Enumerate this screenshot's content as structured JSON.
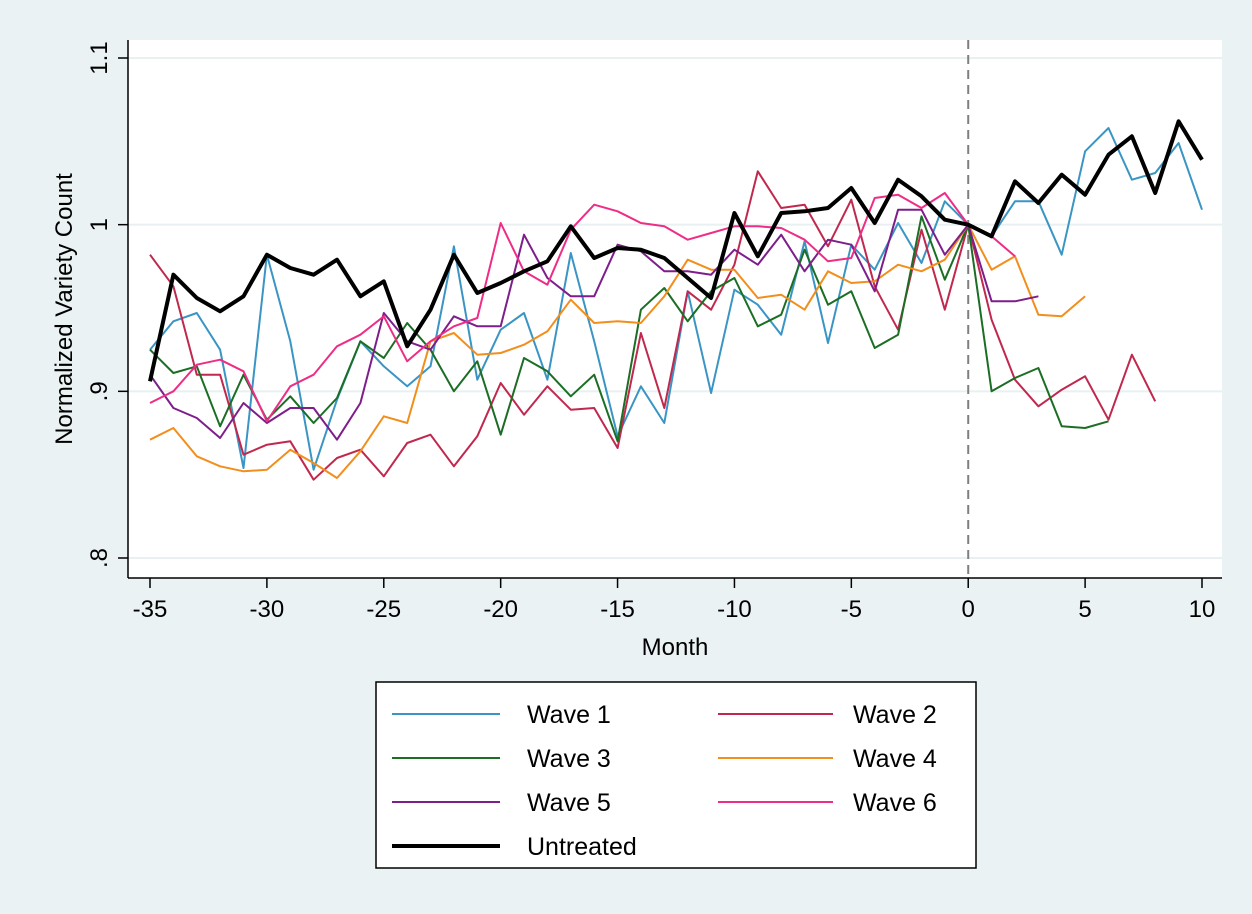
{
  "chart_data": {
    "type": "line",
    "xlabel": "Month",
    "ylabel": "Normalized Variety Count",
    "xlim": [
      -35,
      10
    ],
    "ylim": [
      0.8,
      1.1
    ],
    "xticks": [
      -35,
      -30,
      -25,
      -20,
      -15,
      -10,
      -5,
      0,
      5,
      10
    ],
    "xtick_labels": [
      "-35",
      "-30",
      "-25",
      "-20",
      "-15",
      "-10",
      "-5",
      "0",
      "5",
      "10"
    ],
    "yticks": [
      0.8,
      0.9,
      1.0,
      1.1
    ],
    "ytick_labels": [
      ".8",
      ".9",
      "1",
      "1.1"
    ],
    "grid": true,
    "vline_x": 0,
    "legend_position": "bottom",
    "colors": {
      "background": "#eaf2f3",
      "plot_background": "#ffffff",
      "grid": "#e8f0f1",
      "vline": "#7f7f7f"
    },
    "series": [
      {
        "name": "Wave 1",
        "color": "#3a95c4",
        "width": 2,
        "x": [
          -35,
          -34,
          -33,
          -32,
          -31,
          -30,
          -29,
          -28,
          -27,
          -26,
          -25,
          -24,
          -23,
          -22,
          -21,
          -20,
          -19,
          -18,
          -17,
          -16,
          -15,
          -14,
          -13,
          -12,
          -11,
          -10,
          -9,
          -8,
          -7,
          -6,
          -5,
          -4,
          -3,
          -2,
          -1,
          0,
          1,
          2,
          3,
          4,
          5,
          6,
          7,
          8,
          9,
          10
        ],
        "y": [
          0.925,
          0.942,
          0.947,
          0.925,
          0.854,
          0.982,
          0.93,
          0.853,
          0.895,
          0.93,
          0.915,
          0.903,
          0.915,
          0.987,
          0.907,
          0.937,
          0.947,
          0.907,
          0.983,
          0.93,
          0.873,
          0.903,
          0.881,
          0.96,
          0.899,
          0.961,
          0.952,
          0.934,
          0.99,
          0.929,
          0.988,
          0.973,
          1.001,
          0.977,
          1.014,
          1.0,
          0.993,
          1.014,
          1.014,
          0.982,
          1.044,
          1.058,
          1.027,
          1.031,
          1.049,
          1.009
        ]
      },
      {
        "name": "Wave 2",
        "color": "#c0284e",
        "width": 2,
        "x": [
          -35,
          -34,
          -33,
          -32,
          -31,
          -30,
          -29,
          -28,
          -27,
          -26,
          -25,
          -24,
          -23,
          -22,
          -21,
          -20,
          -19,
          -18,
          -17,
          -16,
          -15,
          -14,
          -13,
          -12,
          -11,
          -10,
          -9,
          -8,
          -7,
          -6,
          -5,
          -4,
          -3,
          -2,
          -1,
          0,
          1,
          2,
          3,
          4,
          5,
          6,
          7,
          8
        ],
        "y": [
          0.982,
          0.963,
          0.91,
          0.91,
          0.862,
          0.868,
          0.87,
          0.847,
          0.86,
          0.865,
          0.849,
          0.869,
          0.874,
          0.855,
          0.873,
          0.905,
          0.886,
          0.903,
          0.889,
          0.89,
          0.866,
          0.935,
          0.89,
          0.96,
          0.949,
          0.976,
          1.032,
          1.01,
          1.012,
          0.987,
          1.015,
          0.963,
          0.937,
          0.997,
          0.949,
          1.0,
          0.943,
          0.907,
          0.891,
          0.901,
          0.909,
          0.883,
          0.922,
          0.894
        ]
      },
      {
        "name": "Wave 3",
        "color": "#1b6e24",
        "width": 2,
        "x": [
          -35,
          -34,
          -33,
          -32,
          -31,
          -30,
          -29,
          -28,
          -27,
          -26,
          -25,
          -24,
          -23,
          -22,
          -21,
          -20,
          -19,
          -18,
          -17,
          -16,
          -15,
          -14,
          -13,
          -12,
          -11,
          -10,
          -9,
          -8,
          -7,
          -6,
          -5,
          -4,
          -3,
          -2,
          -1,
          0,
          1,
          2,
          3,
          4,
          5,
          6
        ],
        "y": [
          0.925,
          0.911,
          0.915,
          0.879,
          0.91,
          0.883,
          0.897,
          0.881,
          0.896,
          0.93,
          0.92,
          0.941,
          0.925,
          0.9,
          0.918,
          0.874,
          0.92,
          0.912,
          0.897,
          0.91,
          0.87,
          0.949,
          0.962,
          0.942,
          0.96,
          0.968,
          0.939,
          0.946,
          0.985,
          0.952,
          0.96,
          0.926,
          0.934,
          1.005,
          0.967,
          1.0,
          0.9,
          0.908,
          0.914,
          0.879,
          0.878,
          0.882
        ]
      },
      {
        "name": "Wave 4",
        "color": "#f28e1c",
        "width": 2,
        "x": [
          -35,
          -34,
          -33,
          -32,
          -31,
          -30,
          -29,
          -28,
          -27,
          -26,
          -25,
          -24,
          -23,
          -22,
          -21,
          -20,
          -19,
          -18,
          -17,
          -16,
          -15,
          -14,
          -13,
          -12,
          -11,
          -10,
          -9,
          -8,
          -7,
          -6,
          -5,
          -4,
          -3,
          -2,
          -1,
          0,
          1,
          2,
          3,
          4,
          5
        ],
        "y": [
          0.871,
          0.878,
          0.861,
          0.855,
          0.852,
          0.853,
          0.865,
          0.857,
          0.848,
          0.864,
          0.885,
          0.881,
          0.93,
          0.935,
          0.922,
          0.923,
          0.928,
          0.936,
          0.955,
          0.941,
          0.942,
          0.941,
          0.957,
          0.979,
          0.973,
          0.973,
          0.956,
          0.958,
          0.949,
          0.972,
          0.965,
          0.966,
          0.976,
          0.972,
          0.979,
          1.0,
          0.973,
          0.981,
          0.946,
          0.945,
          0.957
        ]
      },
      {
        "name": "Wave 5",
        "color": "#7d1e8a",
        "width": 2,
        "x": [
          -35,
          -34,
          -33,
          -32,
          -31,
          -30,
          -29,
          -28,
          -27,
          -26,
          -25,
          -24,
          -23,
          -22,
          -21,
          -20,
          -19,
          -18,
          -17,
          -16,
          -15,
          -14,
          -13,
          -12,
          -11,
          -10,
          -9,
          -8,
          -7,
          -6,
          -5,
          -4,
          -3,
          -2,
          -1,
          0,
          1,
          2,
          3
        ],
        "y": [
          0.91,
          0.89,
          0.884,
          0.872,
          0.893,
          0.881,
          0.89,
          0.89,
          0.871,
          0.893,
          0.947,
          0.93,
          0.925,
          0.945,
          0.939,
          0.939,
          0.994,
          0.968,
          0.957,
          0.957,
          0.988,
          0.984,
          0.972,
          0.972,
          0.97,
          0.985,
          0.976,
          0.994,
          0.972,
          0.991,
          0.988,
          0.96,
          1.009,
          1.009,
          0.982,
          1.0,
          0.954,
          0.954,
          0.957
        ]
      },
      {
        "name": "Wave 6",
        "color": "#ee2d86",
        "width": 2,
        "x": [
          -35,
          -34,
          -33,
          -32,
          -31,
          -30,
          -29,
          -28,
          -27,
          -26,
          -25,
          -24,
          -23,
          -22,
          -21,
          -20,
          -19,
          -18,
          -17,
          -16,
          -15,
          -14,
          -13,
          -12,
          -11,
          -10,
          -9,
          -8,
          -7,
          -6,
          -5,
          -4,
          -3,
          -2,
          -1,
          0,
          1,
          2
        ],
        "y": [
          0.893,
          0.9,
          0.916,
          0.919,
          0.912,
          0.882,
          0.903,
          0.91,
          0.927,
          0.934,
          0.945,
          0.918,
          0.93,
          0.939,
          0.944,
          1.001,
          0.972,
          0.964,
          0.997,
          1.012,
          1.008,
          1.001,
          0.999,
          0.991,
          0.995,
          0.999,
          0.999,
          0.998,
          0.991,
          0.978,
          0.98,
          1.016,
          1.018,
          1.01,
          1.019,
          1.0,
          0.993,
          0.981
        ]
      },
      {
        "name": "Untreated",
        "color": "#000000",
        "width": 4,
        "x": [
          -35,
          -34,
          -33,
          -32,
          -31,
          -30,
          -29,
          -28,
          -27,
          -26,
          -25,
          -24,
          -23,
          -22,
          -21,
          -20,
          -19,
          -18,
          -17,
          -16,
          -15,
          -14,
          -13,
          -12,
          -11,
          -10,
          -9,
          -8,
          -7,
          -6,
          -5,
          -4,
          -3,
          -2,
          -1,
          0,
          1,
          2,
          3,
          4,
          5,
          6,
          7,
          8,
          9,
          10
        ],
        "y": [
          0.906,
          0.97,
          0.956,
          0.948,
          0.957,
          0.982,
          0.974,
          0.97,
          0.979,
          0.957,
          0.966,
          0.927,
          0.949,
          0.982,
          0.959,
          0.965,
          0.972,
          0.978,
          0.999,
          0.98,
          0.986,
          0.985,
          0.98,
          0.968,
          0.956,
          1.007,
          0.981,
          1.007,
          1.008,
          1.01,
          1.022,
          1.001,
          1.027,
          1.017,
          1.003,
          1.0,
          0.993,
          1.026,
          1.013,
          1.03,
          1.018,
          1.042,
          1.053,
          1.019,
          1.062,
          1.039
        ]
      }
    ]
  }
}
